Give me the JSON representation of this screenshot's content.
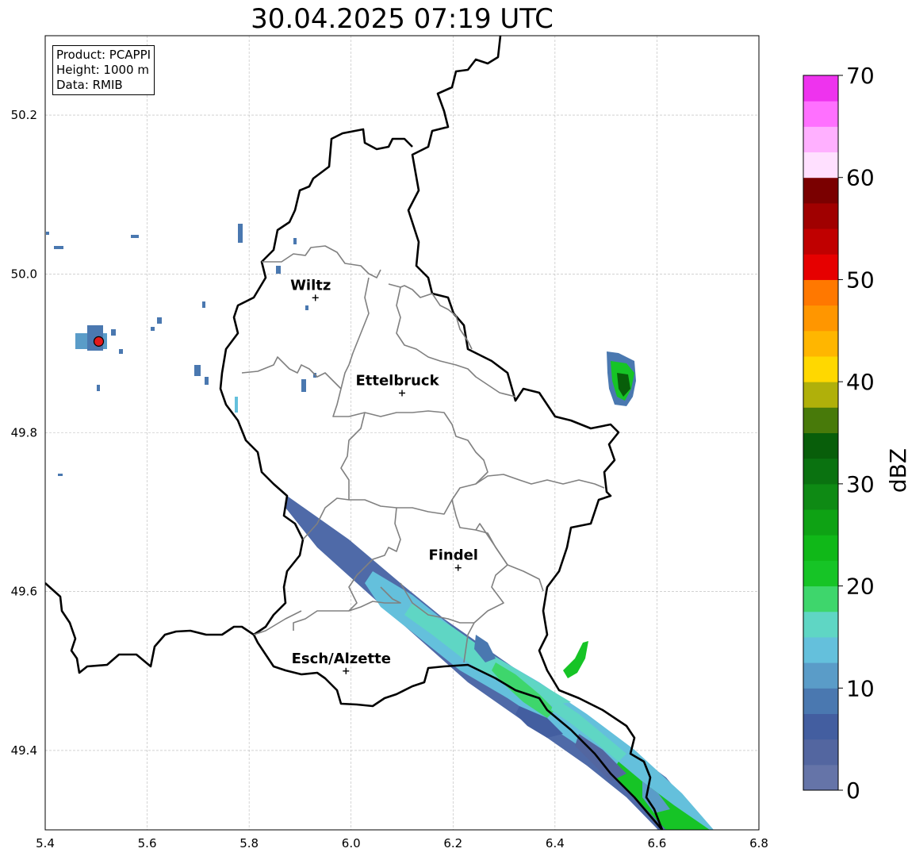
{
  "title": "30.04.2025 07:19 UTC",
  "info_box": {
    "product": "Product: PCAPPI",
    "height": "Height: 1000 m",
    "data": "Data: RMIB"
  },
  "axes": {
    "x_range": [
      5.4,
      6.8
    ],
    "y_range": [
      49.3,
      50.3
    ],
    "x_ticks": [
      "5.4",
      "5.6",
      "5.8",
      "6.0",
      "6.2",
      "6.4",
      "6.6",
      "6.8"
    ],
    "y_ticks": [
      "49.4",
      "49.6",
      "49.8",
      "50.0",
      "50.2"
    ],
    "grid": true
  },
  "cities": [
    {
      "name": "Wiltz",
      "lon": 5.93,
      "lat": 49.97
    },
    {
      "name": "Ettelbruck",
      "lon": 6.1,
      "lat": 49.85
    },
    {
      "name": "Findel",
      "lon": 6.21,
      "lat": 49.63
    },
    {
      "name": "Esch/Alzette",
      "lon": 5.99,
      "lat": 49.5
    }
  ],
  "radar_site": {
    "lon": 5.505,
    "lat": 49.915,
    "color": "#e31a1c"
  },
  "colorbar": {
    "label": "dBZ",
    "min": 0,
    "max": 70,
    "step": 2.5,
    "ticks": [
      "0",
      "10",
      "20",
      "30",
      "40",
      "50",
      "60",
      "70"
    ],
    "colors": [
      "#6574a8",
      "#5366a0",
      "#435ea0",
      "#4a78b0",
      "#5a9cc8",
      "#64c0dc",
      "#5fd6c4",
      "#3ed66c",
      "#16c426",
      "#10b818",
      "#0ea214",
      "#0e8a14",
      "#0a7210",
      "#085e0a",
      "#487a0a",
      "#b0b00a",
      "#ffd800",
      "#ffb600",
      "#ff9600",
      "#ff7800",
      "#e60000",
      "#c00000",
      "#a00000",
      "#7a0000",
      "#ffe0ff",
      "#ffb0ff",
      "#ff70ff",
      "#ee33ee"
    ]
  }
}
